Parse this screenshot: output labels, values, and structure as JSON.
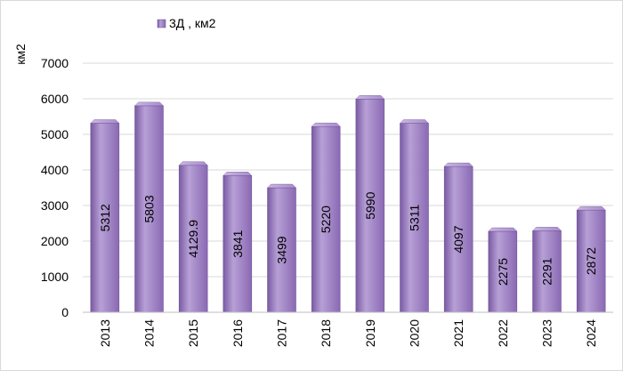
{
  "chart_data": {
    "type": "bar",
    "title": "",
    "xlabel": "",
    "ylabel": "км2",
    "ylim": [
      0,
      7000
    ],
    "yticks": [
      0,
      1000,
      2000,
      3000,
      4000,
      5000,
      6000,
      7000
    ],
    "grid": true,
    "legend_position": "top-left",
    "categories": [
      "2013",
      "2014",
      "2015",
      "2016",
      "2017",
      "2018",
      "2019",
      "2020",
      "2021",
      "2022",
      "2023",
      "2024"
    ],
    "series": [
      {
        "name": "3Д , км2",
        "values": [
          5312,
          5803,
          4129.9,
          3841,
          3499,
          5220,
          5990,
          5311,
          4097,
          2275,
          2291,
          2872
        ],
        "labels": [
          "5312",
          "5803",
          "4129.9",
          "3841",
          "3499",
          "5220",
          "5990",
          "5311",
          "4097",
          "2275",
          "2291",
          "2872"
        ],
        "color": "#9b7fc0"
      }
    ]
  }
}
